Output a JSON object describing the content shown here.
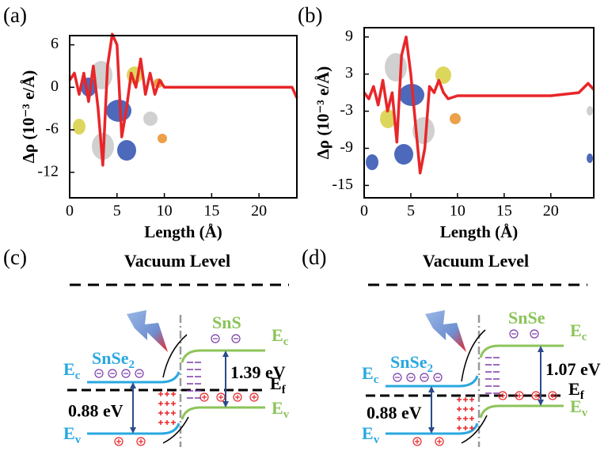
{
  "chart_data": [
    {
      "type": "line",
      "panel_label": "(a)",
      "xlabel": "Length (Å)",
      "ylabel": "Δρ (10⁻³ e/Å)",
      "x": [
        0,
        0.5,
        1,
        1.5,
        2,
        2.5,
        3,
        3.5,
        4,
        4.5,
        5,
        5.5,
        6,
        6.5,
        7,
        7.5,
        8,
        8.5,
        9,
        9.5,
        10,
        12,
        15,
        20,
        22,
        23,
        23.5,
        24
      ],
      "values": [
        1,
        2,
        -1,
        2,
        -2,
        3,
        -3,
        -11,
        3,
        7.5,
        6,
        -7,
        -3,
        2,
        0,
        4,
        -1,
        2,
        -1,
        1,
        0,
        0,
        0,
        0,
        0,
        0,
        0,
        -1.5
      ],
      "color": "#e8262a",
      "xlim": [
        0,
        24
      ],
      "ylim": [
        -15.6,
        7.3
      ],
      "xticks": [
        0,
        5,
        10,
        15,
        20
      ],
      "yticks": [
        6,
        0,
        -6,
        -12
      ]
    },
    {
      "type": "line",
      "panel_label": "(b)",
      "xlabel": "Length (Å)",
      "ylabel": "Δρ (10⁻³ e/Å)",
      "x": [
        0,
        0.5,
        1,
        1.5,
        2,
        2.5,
        3,
        3.5,
        4,
        4.5,
        5,
        5.5,
        6,
        6.5,
        7,
        7.5,
        8,
        8.5,
        9,
        10,
        15,
        20,
        23,
        24,
        24.6
      ],
      "values": [
        0,
        -1,
        1,
        -2,
        2,
        -3,
        0,
        -8,
        6,
        9,
        3,
        -5,
        -13,
        -9,
        1,
        0,
        2,
        0,
        -1,
        -0.5,
        -0.5,
        -0.5,
        0,
        1.5,
        0.5
      ],
      "color": "#e8262a",
      "xlim": [
        0,
        24.6
      ],
      "ylim": [
        -17,
        10.5
      ],
      "xticks": [
        0,
        5,
        10,
        15,
        20
      ],
      "yticks": [
        9,
        3,
        -3,
        -9,
        -15
      ]
    }
  ],
  "diagrams": [
    {
      "panel": "(c)",
      "vacuum_level": "Vacuum Level",
      "left_material": {
        "text": "SnSe",
        "sub": "2"
      },
      "right_material": {
        "text": "SnS"
      },
      "left_ec": {
        "text": "E",
        "sub": "c"
      },
      "left_ev": {
        "text": "E",
        "sub": "v"
      },
      "right_ec": {
        "text": "E",
        "sub": "c"
      },
      "right_ev": {
        "text": "E",
        "sub": "v"
      },
      "ef": {
        "text": "E",
        "sub": "f"
      },
      "left_gap": "0.88 eV",
      "right_gap": "1.39 eV"
    },
    {
      "panel": "(d)",
      "vacuum_level": "Vacuum Level",
      "left_material": {
        "text": "SnSe",
        "sub": "2"
      },
      "right_material": {
        "text": "SnSe"
      },
      "left_ec": {
        "text": "E",
        "sub": "c"
      },
      "left_ev": {
        "text": "E",
        "sub": "v"
      },
      "right_ec": {
        "text": "E",
        "sub": "c"
      },
      "right_ev": {
        "text": "E",
        "sub": "v"
      },
      "ef": {
        "text": "E",
        "sub": "f"
      },
      "left_gap": "0.88 eV",
      "right_gap": "1.07 eV"
    }
  ]
}
